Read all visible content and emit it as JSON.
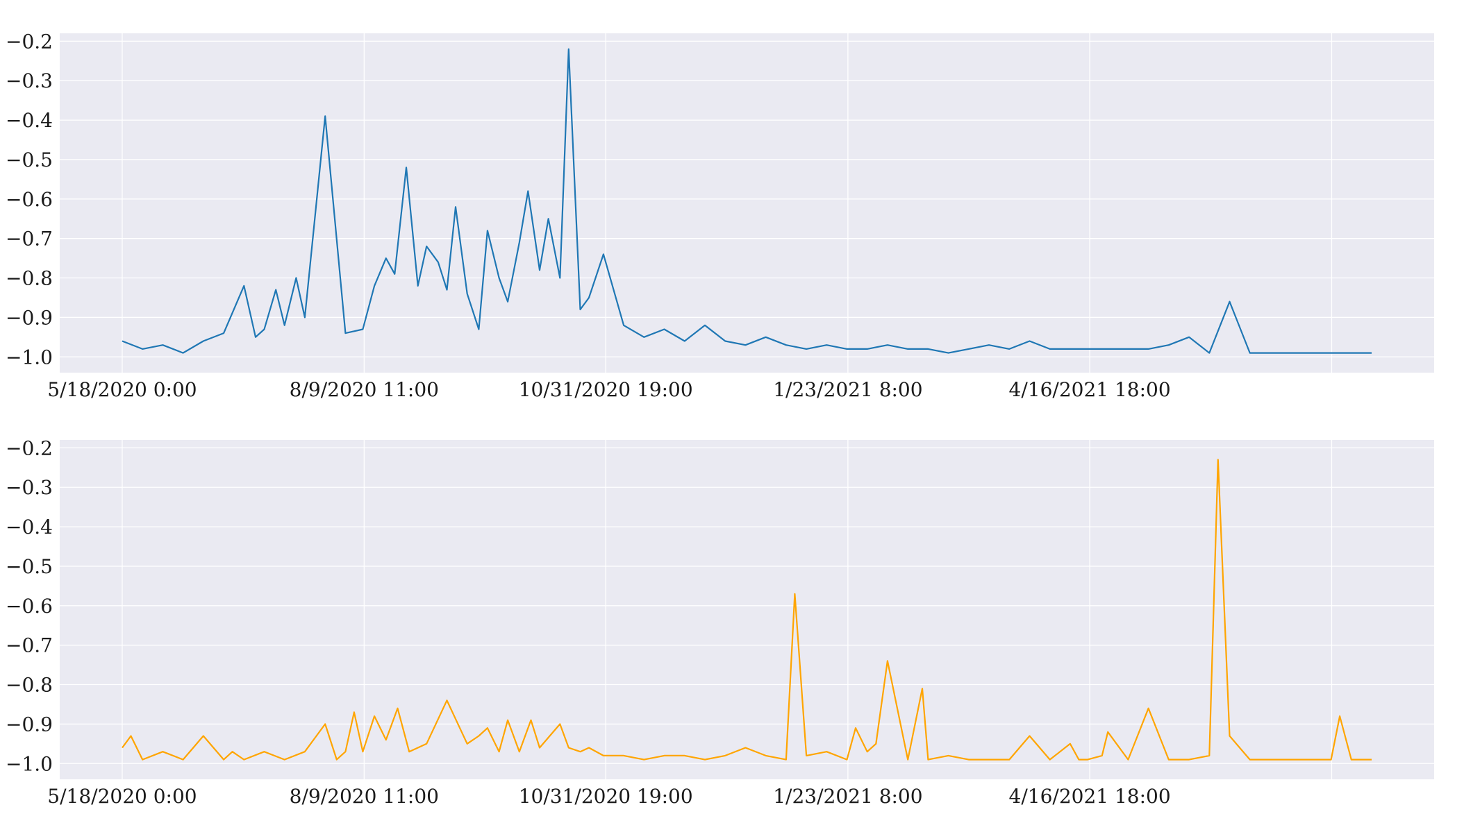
{
  "chart_data": [
    {
      "type": "line",
      "title": "",
      "xlabel": "",
      "ylabel": "",
      "x_tick_labels": [
        "5/18/2020 0:00",
        "8/9/2020 11:00",
        "10/31/2020 19:00",
        "1/23/2021 8:00",
        "4/16/2021 18:00"
      ],
      "x_range": [
        "5/18/2020 0:00",
        "7/23/2021 0:00"
      ],
      "y_tick_labels": [
        "-0.2",
        "-0.3",
        "-0.4",
        "-0.5",
        "-0.6",
        "-0.7",
        "-0.8",
        "-0.9",
        "-1.0"
      ],
      "ylim": [
        -1.04,
        -0.18
      ],
      "grid": true,
      "legend": "none",
      "series": [
        {
          "color": "#1f77b4",
          "x": [
            "5/18/2020",
            "5/25/2020",
            "6/1/2020",
            "6/8/2020",
            "6/15/2020",
            "6/22/2020",
            "6/29/2020",
            "7/3/2020",
            "7/6/2020",
            "7/10/2020",
            "7/13/2020",
            "7/17/2020",
            "7/20/2020",
            "7/27/2020",
            "8/3/2020",
            "8/9/2020",
            "8/13/2020",
            "8/17/2020",
            "8/20/2020",
            "8/24/2020",
            "8/28/2020",
            "8/31/2020",
            "9/4/2020",
            "9/7/2020",
            "9/10/2020",
            "9/14/2020",
            "9/18/2020",
            "9/21/2020",
            "9/25/2020",
            "9/28/2020",
            "10/2/2020",
            "10/5/2020",
            "10/9/2020",
            "10/12/2020",
            "10/16/2020",
            "10/19/2020",
            "10/23/2020",
            "10/26/2020",
            "10/31/2020",
            "11/7/2020",
            "11/14/2020",
            "11/21/2020",
            "11/28/2020",
            "12/5/2020",
            "12/12/2020",
            "12/19/2020",
            "12/26/2020",
            "1/2/2021",
            "1/9/2021",
            "1/16/2021",
            "1/23/2021",
            "1/30/2021",
            "2/6/2021",
            "2/13/2021",
            "2/20/2021",
            "2/27/2021",
            "3/6/2021",
            "3/13/2021",
            "3/20/2021",
            "3/27/2021",
            "4/3/2021",
            "4/10/2021",
            "4/16/2021",
            "4/23/2021",
            "4/30/2021",
            "5/7/2021",
            "5/14/2021",
            "5/21/2021",
            "5/28/2021",
            "6/4/2021",
            "6/11/2021",
            "6/18/2021",
            "6/25/2021",
            "7/2/2021",
            "7/9/2021",
            "7/16/2021",
            "7/23/2021"
          ],
          "values": [
            -0.96,
            -0.98,
            -0.97,
            -0.99,
            -0.96,
            -0.94,
            -0.82,
            -0.95,
            -0.93,
            -0.83,
            -0.92,
            -0.8,
            -0.9,
            -0.39,
            -0.94,
            -0.93,
            -0.82,
            -0.75,
            -0.79,
            -0.52,
            -0.82,
            -0.72,
            -0.76,
            -0.83,
            -0.62,
            -0.84,
            -0.93,
            -0.68,
            -0.8,
            -0.86,
            -0.71,
            -0.58,
            -0.78,
            -0.65,
            -0.8,
            -0.22,
            -0.88,
            -0.85,
            -0.74,
            -0.92,
            -0.95,
            -0.93,
            -0.96,
            -0.92,
            -0.96,
            -0.97,
            -0.95,
            -0.97,
            -0.98,
            -0.97,
            -0.98,
            -0.98,
            -0.97,
            -0.98,
            -0.98,
            -0.99,
            -0.98,
            -0.97,
            -0.98,
            -0.96,
            -0.98,
            -0.98,
            -0.98,
            -0.98,
            -0.98,
            -0.98,
            -0.97,
            -0.95,
            -0.99,
            -0.86,
            -0.99,
            -0.99,
            -0.99,
            -0.99,
            -0.99,
            -0.99,
            -0.99
          ]
        }
      ]
    },
    {
      "type": "line",
      "title": "",
      "xlabel": "",
      "ylabel": "",
      "x_tick_labels": [
        "5/18/2020 0:00",
        "8/9/2020 11:00",
        "10/31/2020 19:00",
        "1/23/2021 8:00",
        "4/16/2021 18:00"
      ],
      "x_range": [
        "5/18/2020 0:00",
        "7/23/2021 0:00"
      ],
      "y_tick_labels": [
        "-0.2",
        "-0.3",
        "-0.4",
        "-0.5",
        "-0.6",
        "-0.7",
        "-0.8",
        "-0.9",
        "-1.0"
      ],
      "ylim": [
        -1.04,
        -0.18
      ],
      "grid": true,
      "legend": "none",
      "series": [
        {
          "color": "#ffa500",
          "x": [
            "5/18/2020",
            "5/21/2020",
            "5/25/2020",
            "6/1/2020",
            "6/8/2020",
            "6/15/2020",
            "6/22/2020",
            "6/25/2020",
            "6/29/2020",
            "7/6/2020",
            "7/13/2020",
            "7/20/2020",
            "7/27/2020",
            "7/31/2020",
            "8/3/2020",
            "8/6/2020",
            "8/9/2020",
            "8/13/2020",
            "8/17/2020",
            "8/21/2020",
            "8/25/2020",
            "8/31/2020",
            "9/7/2020",
            "9/14/2020",
            "9/18/2020",
            "9/21/2020",
            "9/25/2020",
            "9/28/2020",
            "10/2/2020",
            "10/6/2020",
            "10/9/2020",
            "10/16/2020",
            "10/19/2020",
            "10/23/2020",
            "10/26/2020",
            "10/31/2020",
            "11/7/2020",
            "11/14/2020",
            "11/21/2020",
            "11/28/2020",
            "12/5/2020",
            "12/12/2020",
            "12/19/2020",
            "12/26/2020",
            "1/2/2021",
            "1/5/2021",
            "1/9/2021",
            "1/16/2021",
            "1/23/2021",
            "1/26/2021",
            "1/30/2021",
            "2/2/2021",
            "2/6/2021",
            "2/13/2021",
            "2/18/2021",
            "2/20/2021",
            "2/27/2021",
            "3/6/2021",
            "3/13/2021",
            "3/20/2021",
            "3/27/2021",
            "4/3/2021",
            "4/10/2021",
            "4/13/2021",
            "4/16/2021",
            "4/21/2021",
            "4/23/2021",
            "4/30/2021",
            "5/7/2021",
            "5/14/2021",
            "5/21/2021",
            "5/28/2021",
            "5/31/2021",
            "6/4/2021",
            "6/11/2021",
            "6/18/2021",
            "6/25/2021",
            "7/2/2021",
            "7/9/2021",
            "7/12/2021",
            "7/16/2021",
            "7/23/2021"
          ],
          "values": [
            -0.96,
            -0.93,
            -0.99,
            -0.97,
            -0.99,
            -0.93,
            -0.99,
            -0.97,
            -0.99,
            -0.97,
            -0.99,
            -0.97,
            -0.9,
            -0.99,
            -0.97,
            -0.87,
            -0.97,
            -0.88,
            -0.94,
            -0.86,
            -0.97,
            -0.95,
            -0.84,
            -0.95,
            -0.93,
            -0.91,
            -0.97,
            -0.89,
            -0.97,
            -0.89,
            -0.96,
            -0.9,
            -0.96,
            -0.97,
            -0.96,
            -0.98,
            -0.98,
            -0.99,
            -0.98,
            -0.98,
            -0.99,
            -0.98,
            -0.96,
            -0.98,
            -0.99,
            -0.57,
            -0.98,
            -0.97,
            -0.99,
            -0.91,
            -0.97,
            -0.95,
            -0.74,
            -0.99,
            -0.81,
            -0.99,
            -0.98,
            -0.99,
            -0.99,
            -0.99,
            -0.93,
            -0.99,
            -0.95,
            -0.99,
            -0.99,
            -0.98,
            -0.92,
            -0.99,
            -0.86,
            -0.99,
            -0.99,
            -0.98,
            -0.23,
            -0.93,
            -0.99,
            -0.99,
            -0.99,
            -0.99,
            -0.99,
            -0.88,
            -0.99,
            -0.99
          ]
        }
      ]
    }
  ]
}
